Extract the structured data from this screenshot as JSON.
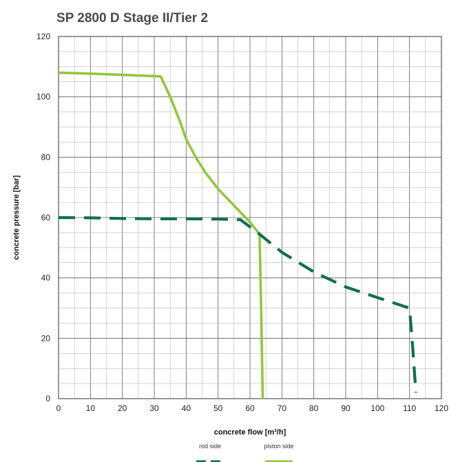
{
  "chart_data": {
    "type": "line",
    "title": "SP 2800 D Stage II/Tier 2",
    "xlabel": "concrete flow [m³/h]",
    "ylabel": "concrete pressure [bar]",
    "xlim": [
      0,
      120
    ],
    "ylim": [
      0,
      120
    ],
    "x_ticks": [
      0,
      10,
      20,
      30,
      40,
      50,
      60,
      70,
      80,
      90,
      100,
      110,
      120
    ],
    "y_ticks": [
      0,
      20,
      40,
      60,
      80,
      100,
      120
    ],
    "grid": true,
    "legend_position": "bottom-center",
    "series": [
      {
        "name": "rod side",
        "style": "dashed",
        "color": "#0e6e50",
        "x": [
          0,
          10,
          20,
          30,
          40,
          50,
          57,
          63,
          70,
          80,
          90,
          100,
          110,
          111,
          112
        ],
        "y": [
          60,
          59.9,
          59.7,
          59.6,
          59.6,
          59.5,
          59.3,
          54.5,
          48.5,
          42,
          37,
          33.5,
          30,
          17,
          2
        ]
      },
      {
        "name": "piston side",
        "style": "solid",
        "color": "#92c63c",
        "x": [
          0,
          10,
          20,
          32,
          35,
          38,
          40,
          43,
          46,
          50,
          55,
          60,
          63,
          63.5,
          64
        ],
        "y": [
          108,
          107.7,
          107.3,
          106.8,
          100,
          92,
          86,
          80,
          75,
          69.5,
          64,
          58.5,
          54.5,
          30,
          0
        ]
      }
    ]
  }
}
